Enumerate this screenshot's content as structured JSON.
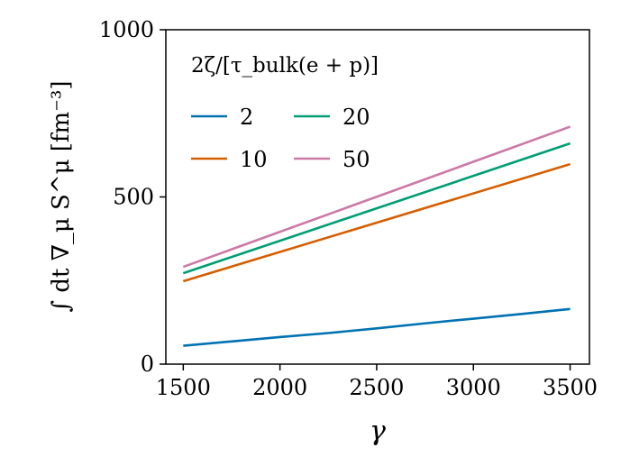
{
  "chart_data": {
    "type": "line",
    "xlabel": "γ",
    "ylabel": "∫ dt ∇_μ S^μ [fm⁻³]",
    "xlim": [
      1410,
      3600
    ],
    "ylim": [
      0,
      1000
    ],
    "xticks": [
      1500,
      2000,
      2500,
      3000,
      3500
    ],
    "yticks": [
      0,
      500,
      1000
    ],
    "xtick_labels": [
      "1500",
      "2000",
      "2500",
      "3000",
      "3500"
    ],
    "ytick_labels": [
      "0",
      "500",
      "1000"
    ],
    "grid": false,
    "legend": {
      "title": "2ζ/[τ_bulk(e + p)]",
      "placement": "top-left",
      "columns": 2
    },
    "series": [
      {
        "name": "2",
        "color": "#0072b2",
        "x": [
          1500,
          1750,
          2000,
          2250,
          2500,
          2750,
          3000,
          3250,
          3500
        ],
        "y": [
          55,
          68,
          81,
          93,
          107,
          122,
          136,
          150,
          165
        ]
      },
      {
        "name": "10",
        "color": "#d55e00",
        "x": [
          1500,
          3500
        ],
        "y": [
          248,
          598
        ]
      },
      {
        "name": "20",
        "color": "#009e73",
        "x": [
          1500,
          3500
        ],
        "y": [
          272,
          660
        ]
      },
      {
        "name": "50",
        "color": "#cc79a7",
        "x": [
          1500,
          3500
        ],
        "y": [
          291,
          710
        ]
      }
    ]
  }
}
